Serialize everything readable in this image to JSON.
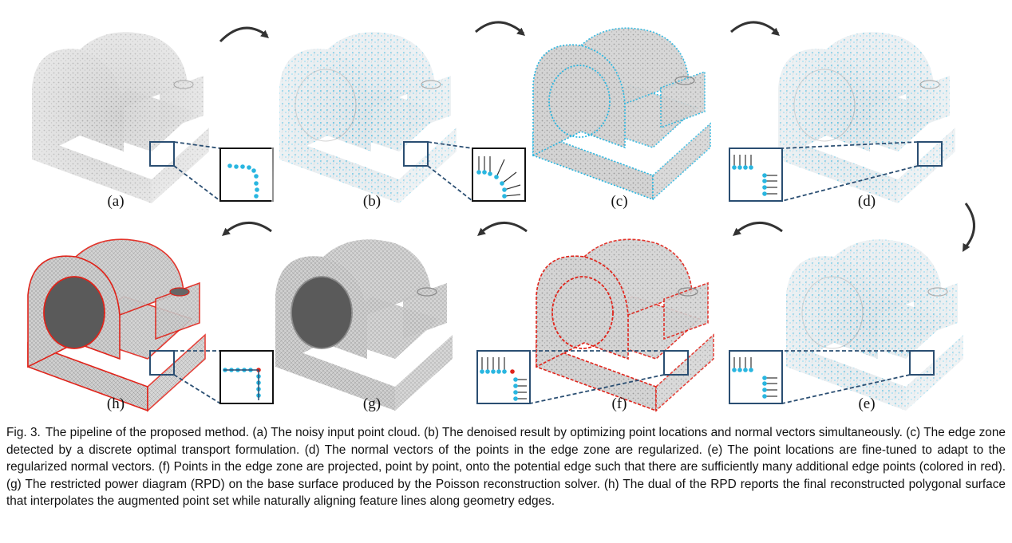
{
  "figure": {
    "panels": [
      {
        "id": "a",
        "label": "(a)",
        "style": "noisy"
      },
      {
        "id": "b",
        "label": "(b)",
        "style": "normals"
      },
      {
        "id": "c",
        "label": "(c)",
        "style": "edgezone"
      },
      {
        "id": "d",
        "label": "(d)",
        "style": "normals"
      },
      {
        "id": "e",
        "label": "(e)",
        "style": "normals"
      },
      {
        "id": "f",
        "label": "(f)",
        "style": "projected"
      },
      {
        "id": "g",
        "label": "(g)",
        "style": "rpd"
      },
      {
        "id": "h",
        "label": "(h)",
        "style": "mesh"
      }
    ],
    "colors": {
      "point_blue": "#29b6e0",
      "edge_red": "#e0241b",
      "inset_dark_blue": "#2a4e72",
      "arrow_gray": "#333333",
      "surface_gray": "#b9b9b9"
    }
  },
  "caption": {
    "figure_number": "Fig. 3.",
    "text": "The pipeline of the proposed method. (a) The noisy input point cloud. (b) The denoised result by optimizing point locations and normal vectors simultaneously. (c) The edge zone detected by a discrete optimal transport formulation. (d) The normal vectors of the points in the edge zone are regularized. (e) The point locations are fine-tuned to adapt to the regularized normal vectors. (f) Points in the edge zone are projected, point by point, onto the potential edge such that there are sufficiently many additional edge points (colored in red). (g) The restricted power diagram (RPD) on the base surface produced by the Poisson reconstruction solver. (h) The dual of the RPD reports the final reconstructed polygonal surface that interpolates the augmented point set while naturally aligning feature lines along geometry edges."
  }
}
